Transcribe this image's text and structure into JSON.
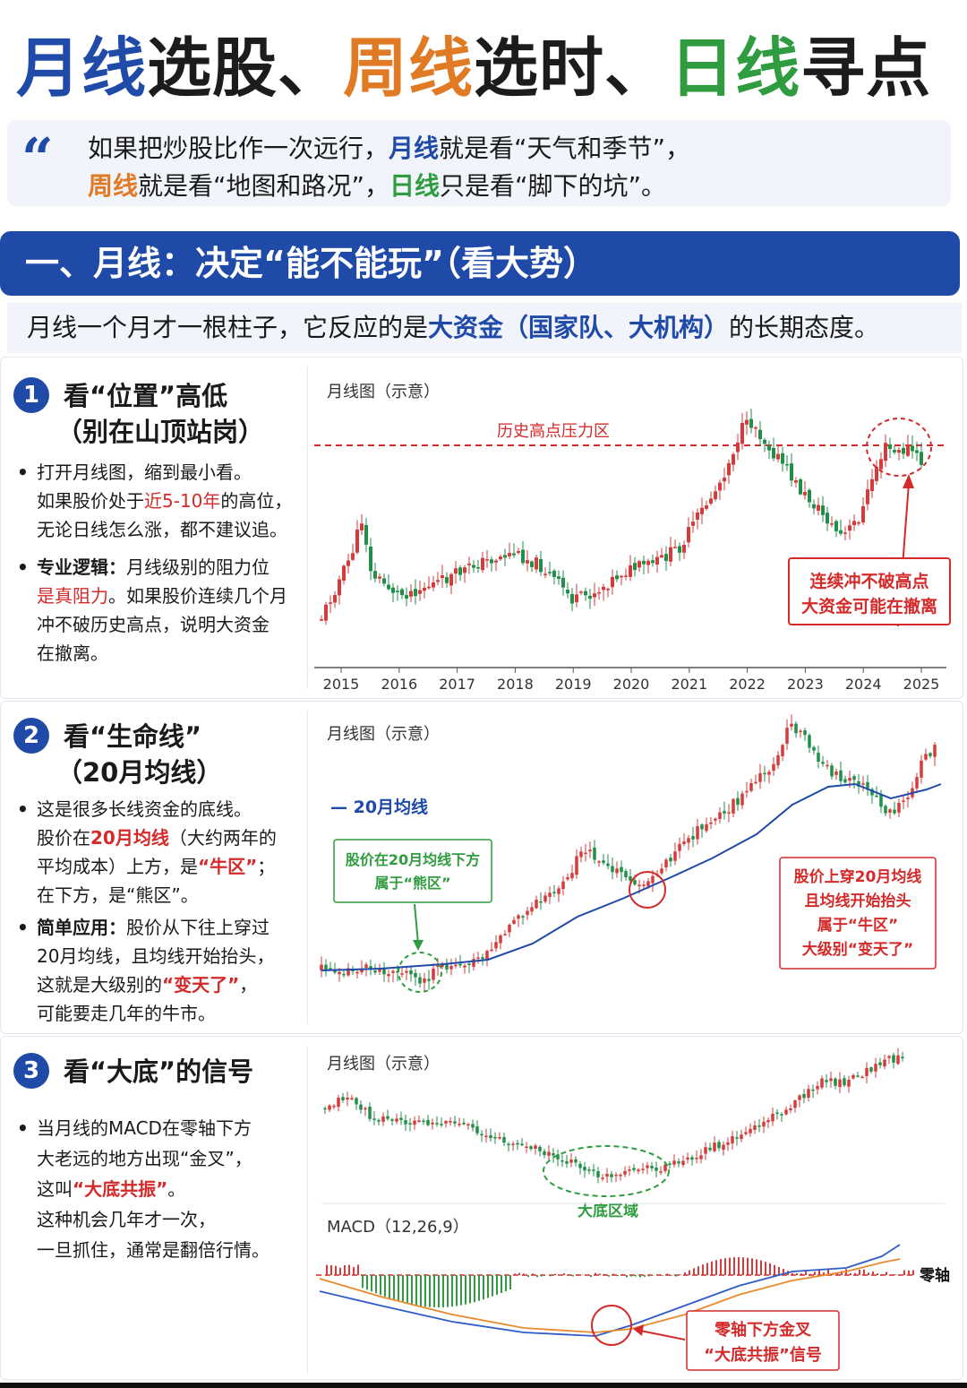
{
  "title": {
    "p1": "月线",
    "p2": "选股、",
    "p3": "周线",
    "p4": "选时、",
    "p5": "日线",
    "p6": "寻点"
  },
  "quote": {
    "mark": "“",
    "l1a": "如果把炒股比作一次远行，",
    "l1b": "月线",
    "l1c": "就是看“天气和季节”，",
    "l2a": "周线",
    "l2b": "就是看“地图和路况”，",
    "l2c": "日线",
    "l2d": "只是看“脚下的坑”。"
  },
  "banner": "一、月线：决定“能不能玩”（看大势）",
  "intro": {
    "a": "月线一个月才一根柱子，它反应的是",
    "b": "大资金（国家队、大机构）",
    "c": "的长期态度。"
  },
  "section1": {
    "num": "1",
    "title1": "看“位置”高低",
    "title2": "（别在山顶站岗）",
    "b1": [
      "打开月线图，缩到最小看。"
    ],
    "b1l2a": "如果股价处于",
    "b1l2b": "近5-10年",
    "b1l2c": "的高位，",
    "b1l3": "无论日线怎么涨，都不建议追。",
    "b2l1a": "专业逻辑：",
    "b2l1b": "月线级别的阻力位",
    "b2l2a": "是真阻力",
    "b2l2b": "。如果股价连续几个月",
    "b2l3": "冲不破历史高点，说明大资金",
    "b2l4": "在撤离。",
    "chart_label": "月线图（示意）",
    "resistance_label": "历史高点压力区",
    "callout1": "连续冲不破高点",
    "callout2": "大资金可能在撤离"
  },
  "section2": {
    "num": "2",
    "title1": "看“生命线”",
    "title2": "（20月均线）",
    "l1": "这是很多长线资金的底线。",
    "l2a": "股价在",
    "l2b": "20月均线",
    "l2c": "（大约两年的",
    "l3a": "平均成本）上方，是",
    "l3b": "“牛区”",
    "l3c": "；",
    "l4": "在下方，是“熊区”。",
    "l5a": "简单应用：",
    "l5b": "股价从下往上穿过",
    "l6": "20月均线，且均线开始抬头，",
    "l7a": "这就是大级别的",
    "l7b": "“变天了”",
    "l7c": "，",
    "l8": "可能要走几年的牛市。",
    "chart_label": "月线图（示意）",
    "ma_legend": "— 20月均线",
    "green_box1": "股价在20月均线下方",
    "green_box2": "属于“熊区”",
    "red_box1": "股价上穿20月均线",
    "red_box2": "且均线开始抬头",
    "red_box3": "属于“牛区”",
    "red_box4": "大级别“变天了”"
  },
  "section3": {
    "num": "3",
    "title": "看“大底”的信号",
    "l1": "当月线的MACD在零轴下方",
    "l2": "大老远的地方出现“金叉”，",
    "l3a": "这叫",
    "l3b": "“大底共振”",
    "l3c": "。",
    "l4": "这种机会几年才一次，",
    "l5": "一旦抓住，通常是翻倍行情。",
    "chart_label": "月线图（示意）",
    "bottom_label": "大底区域",
    "macd_label": "MACD（12,26,9）",
    "zero_label": "零轴",
    "callout1": "零轴下方金叉",
    "callout2": "“大底共振”信号"
  },
  "chart_data": [
    {
      "type": "candlestick",
      "title": "月线图（示意）",
      "x": [
        "2015",
        "2016",
        "2017",
        "2018",
        "2019",
        "2020",
        "2021",
        "2022",
        "2023",
        "2024",
        "2025"
      ],
      "annotations": [
        "历史高点压力区",
        "连续冲不破高点",
        "大资金可能在撤离"
      ]
    },
    {
      "type": "candlestick",
      "title": "月线图（示意）",
      "series": [
        {
          "name": "20月均线"
        }
      ],
      "annotations": [
        "股价在20月均线下方 属于“熊区”",
        "股价上穿20月均线 且均线开始抬头 属于“牛区” 大级别“变天了”"
      ]
    },
    {
      "type": "candlestick",
      "title": "月线图（示意）",
      "annotations": [
        "大底区域"
      ]
    },
    {
      "type": "line",
      "title": "MACD（12,26,9）",
      "annotations": [
        "零轴",
        "零轴下方金叉",
        "“大底共振”信号"
      ]
    }
  ],
  "colors": {
    "blue": "#1f4aa8",
    "orange": "#e07a24",
    "green": "#2e9c3f",
    "red": "#d42a2a"
  }
}
